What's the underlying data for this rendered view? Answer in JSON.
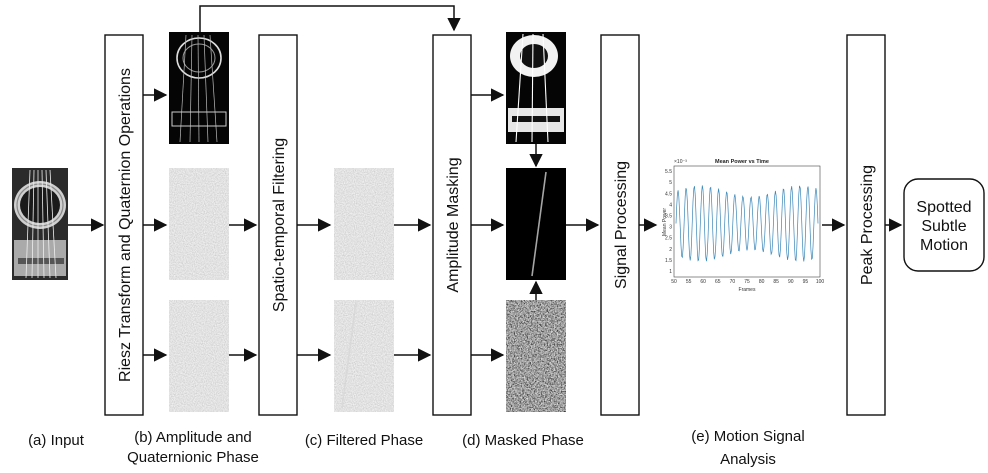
{
  "blocks": {
    "riesz": "Riesz Transform and Quaternion Operations",
    "spatio": "Spatio-temporal Filtering",
    "amplitude": "Amplitude Masking",
    "signal": "Signal Processing",
    "peak": "Peak Processing"
  },
  "output": {
    "line1": "Spotted",
    "line2": "Subtle",
    "line3": "Motion"
  },
  "captions": {
    "a": "(a) Input",
    "b1": "(b) Amplitude and",
    "b2": "Quaternionic Phase",
    "c": "(c) Filtered Phase",
    "d": "(d) Masked Phase",
    "e1": "(e) Motion Signal",
    "e2": "Analysis"
  },
  "plot": {
    "title": "Mean Power vs Time",
    "xlabel": "Frames",
    "ylabel": "Mean Power",
    "exponent": "×10⁻³",
    "x_ticks": [
      "50",
      "55",
      "60",
      "65",
      "70",
      "75",
      "80",
      "85",
      "90",
      "95",
      "100"
    ],
    "y_ticks": [
      "1",
      "1.5",
      "2",
      "2.5",
      "3",
      "3.5",
      "4",
      "4.5",
      "5",
      "5.5"
    ]
  },
  "colors": {
    "line": "#111111",
    "plot_series": "#3a86b8"
  }
}
